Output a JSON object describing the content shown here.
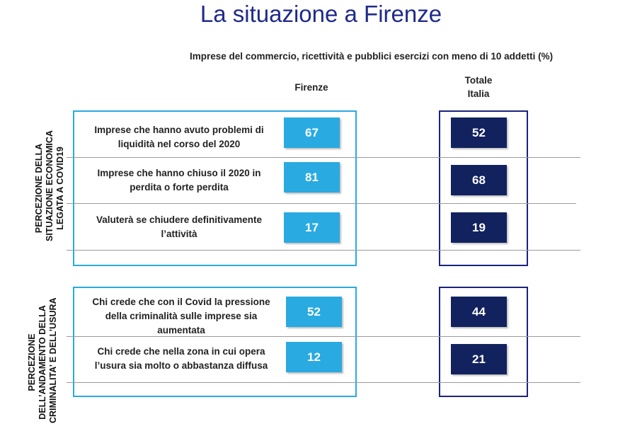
{
  "title": "La situazione a Firenze",
  "subtitle": "Imprese del commercio, ricettività e pubblici esercizi con meno di 10 addetti (%)",
  "columns": {
    "firenze": "Firenze",
    "italia_line1": "Totale",
    "italia_line2": "Italia"
  },
  "colors": {
    "title": "#1f2a8a",
    "firenze_box": "#29abe2",
    "italia_box": "#12225f"
  },
  "section1": {
    "label_lines": [
      "PERCEZIONE DELLA",
      "SITUAZIONE ECONOMICA",
      "LEGATA A COVID19"
    ],
    "rows": [
      {
        "text_lines": [
          "Imprese che hanno avuto problemi di",
          "liquidità nel corso del 2020"
        ],
        "firenze": "67",
        "italia": "52"
      },
      {
        "text_lines": [
          "Imprese che hanno chiuso il 2020 in",
          "perdita o forte perdita"
        ],
        "firenze": "81",
        "italia": "68"
      },
      {
        "text_lines": [
          "Valuterà se chiudere definitivamente",
          "l’attività"
        ],
        "firenze": "17",
        "italia": "19"
      }
    ]
  },
  "section2": {
    "label_lines": [
      "PERCEZIONE",
      "DELL’ANDAMENTO DELLA",
      "CRIMINALITA’ E DELL’USURA"
    ],
    "rows": [
      {
        "text_lines": [
          "Chi crede che con il Covid la pressione",
          "della criminalità sulle imprese sia",
          "aumentata"
        ],
        "firenze": "52",
        "italia": "44"
      },
      {
        "text_lines": [
          "Chi crede che nella zona in cui opera",
          "l’usura sia molto o abbastanza diffusa"
        ],
        "firenze": "12",
        "italia": "21"
      }
    ]
  }
}
